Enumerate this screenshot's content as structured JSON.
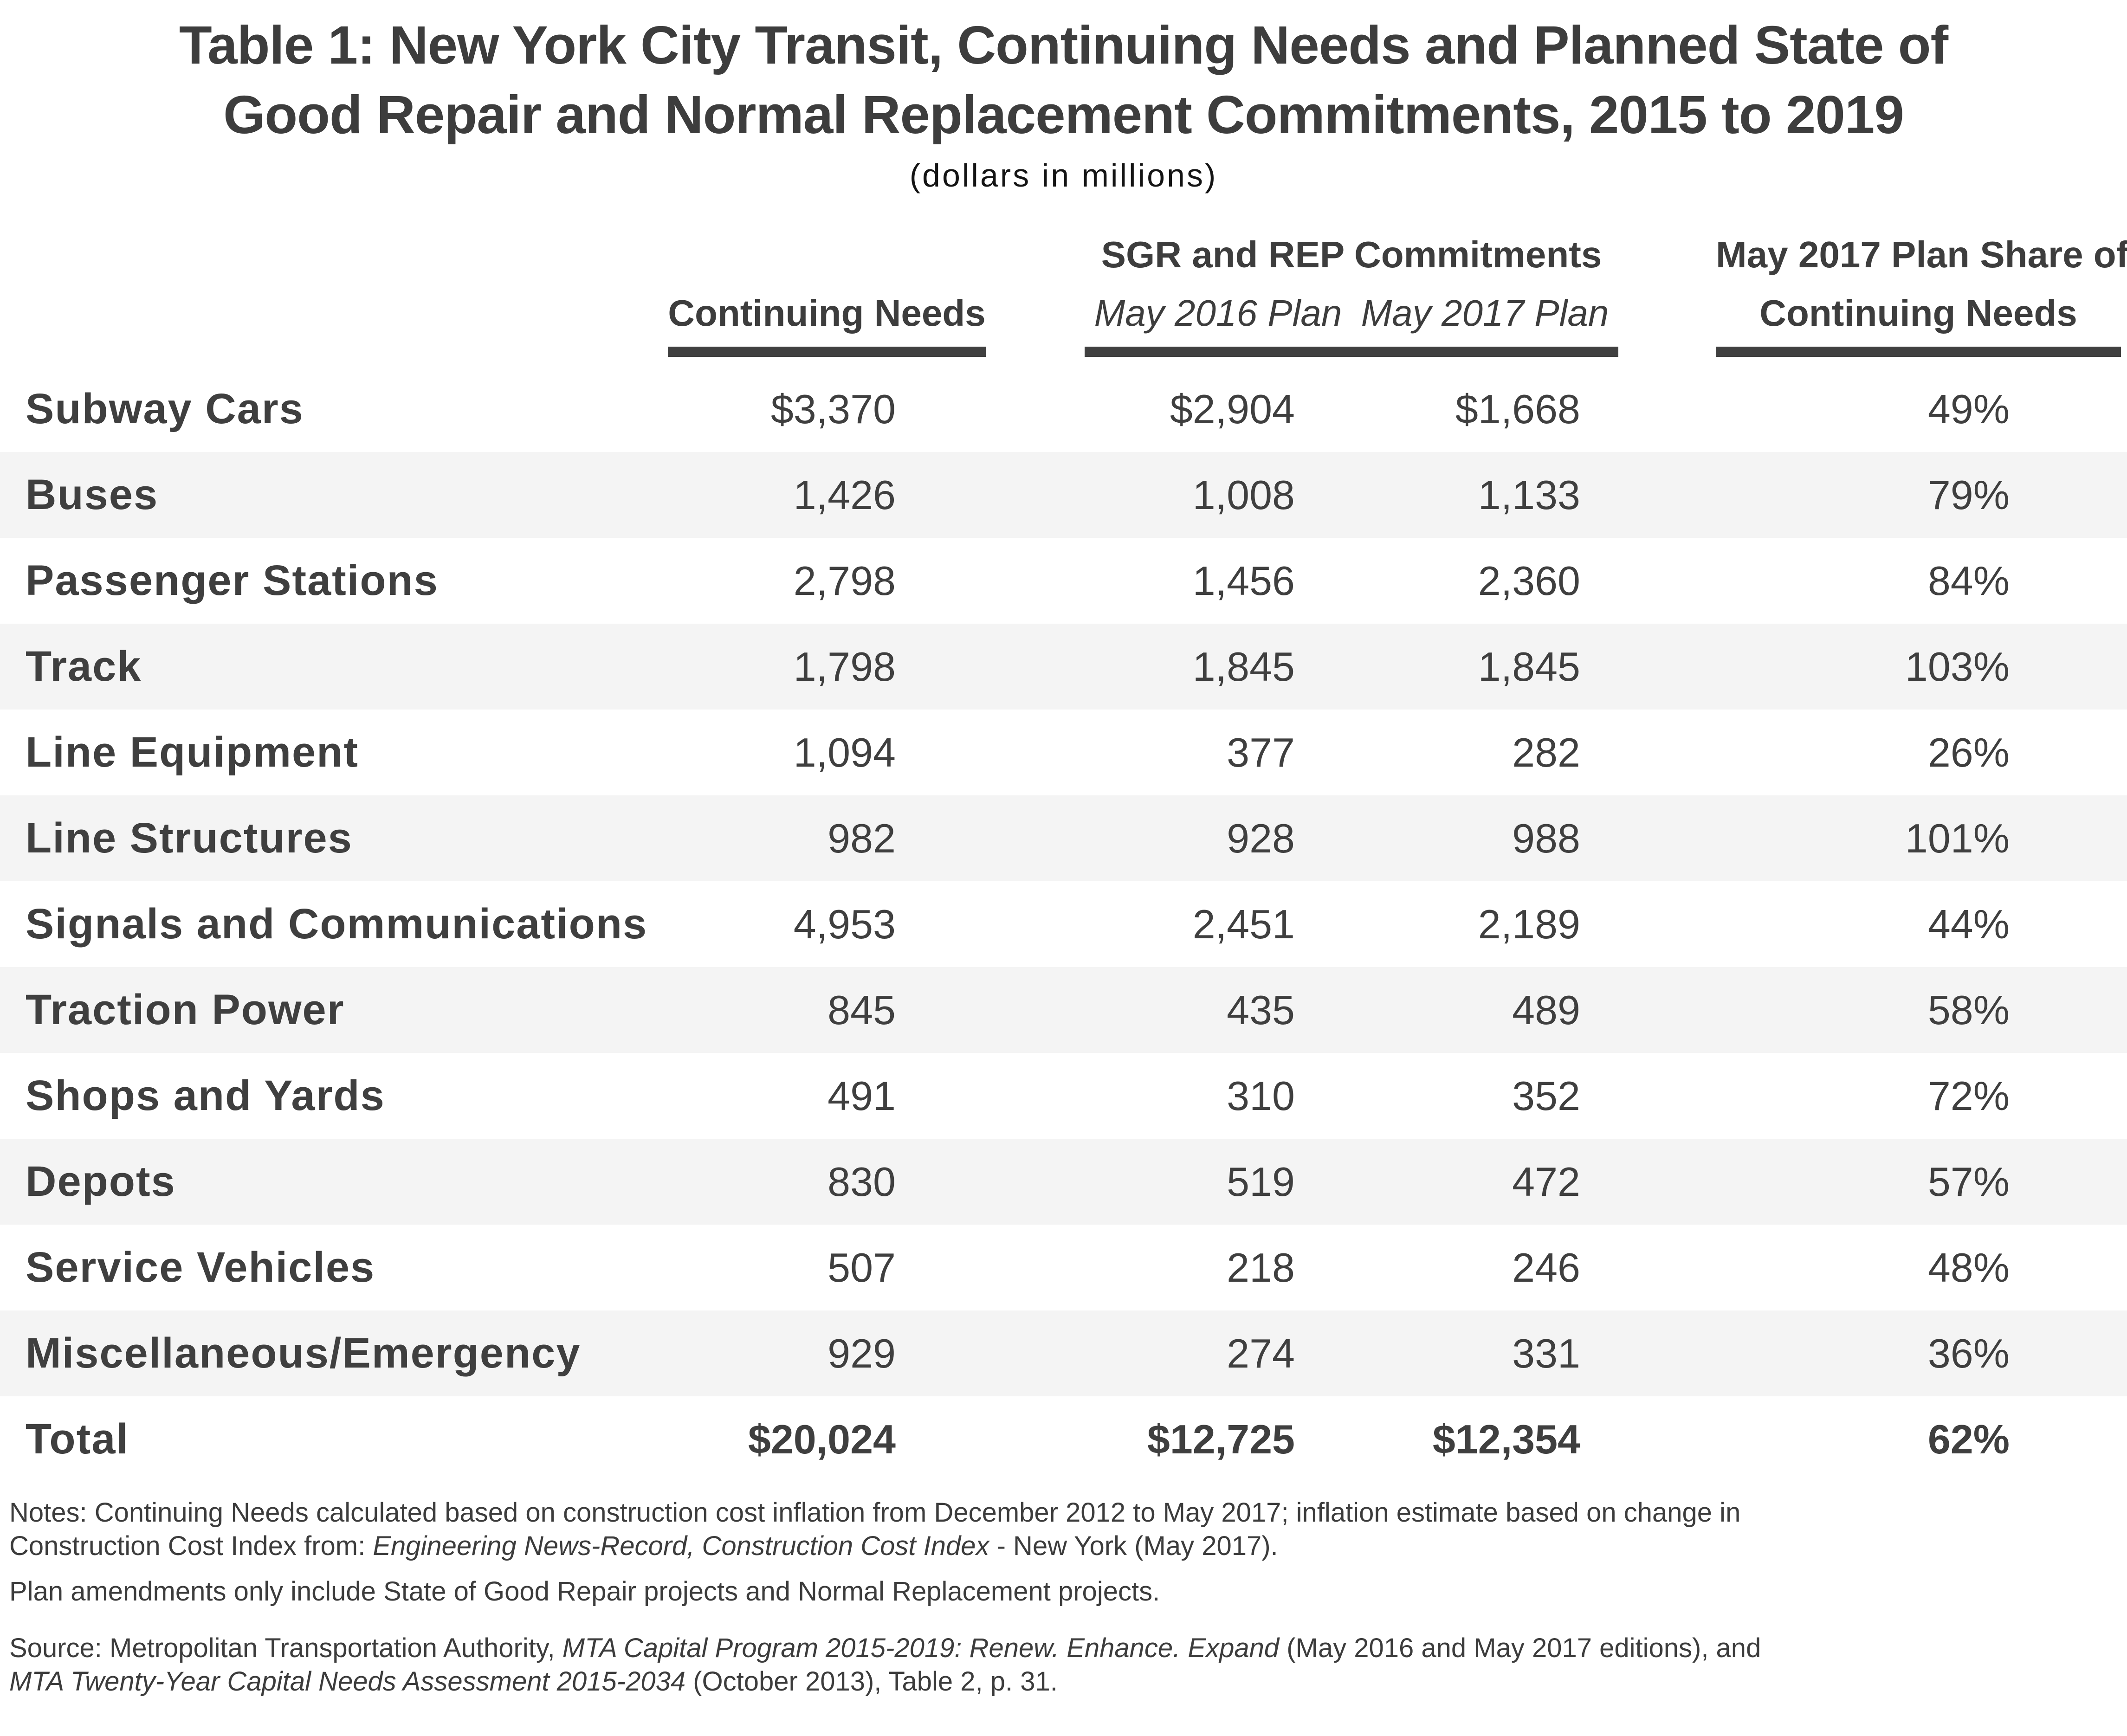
{
  "title": {
    "line1": "Table 1: New York City Transit, Continuing Needs and Planned State of",
    "line2": "Good Repair and Normal Replacement Commitments, 2015 to 2019",
    "subtitle": "(dollars in millions)"
  },
  "table": {
    "headers": {
      "continuing_needs": "Continuing Needs",
      "sgr_rep_group": "SGR and REP Commitments",
      "may_2016_plan": "May 2016 Plan",
      "may_2017_plan": "May 2017 Plan",
      "share_line1": "May 2017 Plan Share of",
      "share_line2": "Continuing Needs"
    },
    "rows": [
      {
        "label": "Subway Cars",
        "continuing_needs": "$3,370",
        "may_2016_plan": "$2,904",
        "may_2017_plan": "$1,668",
        "share": "49%"
      },
      {
        "label": "Buses",
        "continuing_needs": "1,426",
        "may_2016_plan": "1,008",
        "may_2017_plan": "1,133",
        "share": "79%"
      },
      {
        "label": "Passenger Stations",
        "continuing_needs": "2,798",
        "may_2016_plan": "1,456",
        "may_2017_plan": "2,360",
        "share": "84%"
      },
      {
        "label": "Track",
        "continuing_needs": "1,798",
        "may_2016_plan": "1,845",
        "may_2017_plan": "1,845",
        "share": "103%"
      },
      {
        "label": "Line Equipment",
        "continuing_needs": "1,094",
        "may_2016_plan": "377",
        "may_2017_plan": "282",
        "share": "26%"
      },
      {
        "label": "Line Structures",
        "continuing_needs": "982",
        "may_2016_plan": "928",
        "may_2017_plan": "988",
        "share": "101%"
      },
      {
        "label": "Signals and Communications",
        "continuing_needs": "4,953",
        "may_2016_plan": "2,451",
        "may_2017_plan": "2,189",
        "share": "44%"
      },
      {
        "label": "Traction Power",
        "continuing_needs": "845",
        "may_2016_plan": "435",
        "may_2017_plan": "489",
        "share": "58%"
      },
      {
        "label": "Shops and Yards",
        "continuing_needs": "491",
        "may_2016_plan": "310",
        "may_2017_plan": "352",
        "share": "72%"
      },
      {
        "label": "Depots",
        "continuing_needs": "830",
        "may_2016_plan": "519",
        "may_2017_plan": "472",
        "share": "57%"
      },
      {
        "label": "Service Vehicles",
        "continuing_needs": "507",
        "may_2016_plan": "218",
        "may_2017_plan": "246",
        "share": "48%"
      },
      {
        "label": "Miscellaneous/Emergency",
        "continuing_needs": "929",
        "may_2016_plan": "274",
        "may_2017_plan": "331",
        "share": "36%"
      }
    ],
    "total": {
      "label": "Total",
      "continuing_needs": "$20,024",
      "may_2016_plan": "$12,725",
      "may_2017_plan": "$12,354",
      "share": "62%"
    }
  },
  "notes": {
    "paragraphs": [
      {
        "lines": [
          [
            {
              "text": "Notes: Continuing Needs calculated based on construction cost inflation from December 2012 to May 2017; inflation estimate based on change in",
              "italic": false
            }
          ],
          [
            {
              "text": "Construction Cost Index from: ",
              "italic": false
            },
            {
              "text": "Engineering News-Record, Construction Cost Index",
              "italic": true
            },
            {
              "text": " - New York (May 2017).",
              "italic": false
            }
          ]
        ]
      },
      {
        "lines": [
          [
            {
              "text": "Plan amendments only include State of Good Repair projects and Normal Replacement projects.",
              "italic": false
            }
          ]
        ]
      },
      {
        "lines": [
          [
            {
              "text": "Source: Metropolitan Transportation Authority, ",
              "italic": false
            },
            {
              "text": "MTA Capital Program 2015-2019: Renew. Enhance. Expand",
              "italic": true
            },
            {
              "text": " (May 2016 and May 2017 editions), and",
              "italic": false
            }
          ],
          [
            {
              "text": "MTA Twenty-Year Capital Needs Assessment 2015-2034",
              "italic": true
            },
            {
              "text": " (October 2013), Table 2, p. 31.",
              "italic": false
            }
          ]
        ]
      }
    ]
  },
  "colors": {
    "stripe": "#f4f4f4",
    "rule": "#404040",
    "text": "#3f3f3f",
    "title": "#3d3d3d",
    "subtitle": "#141414",
    "notes": "#3c3c3c"
  }
}
